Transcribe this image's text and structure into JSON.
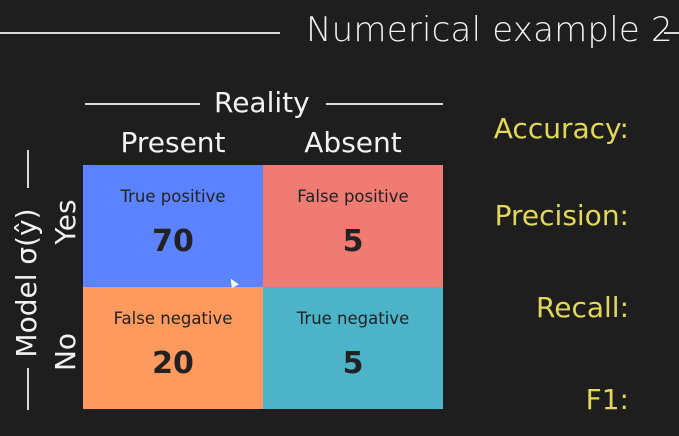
{
  "title": "Numerical example 2",
  "reality_label": "Reality",
  "model_label": "Model σ(ŷ)",
  "columns": [
    "Present",
    "Absent"
  ],
  "rows": [
    "Yes",
    "No"
  ],
  "cells": [
    {
      "label": "True positive",
      "value": "70",
      "color": "#5b83ff"
    },
    {
      "label": "False positive",
      "value": "5",
      "color": "#ef7b73"
    },
    {
      "label": "False negative",
      "value": "20",
      "color": "#ff9a5e"
    },
    {
      "label": "True negative",
      "value": "5",
      "color": "#4db3c9"
    }
  ],
  "metrics": {
    "accuracy": "Accuracy:",
    "precision": "Precision:",
    "recall": "Recall:",
    "f1": "F1:"
  }
}
